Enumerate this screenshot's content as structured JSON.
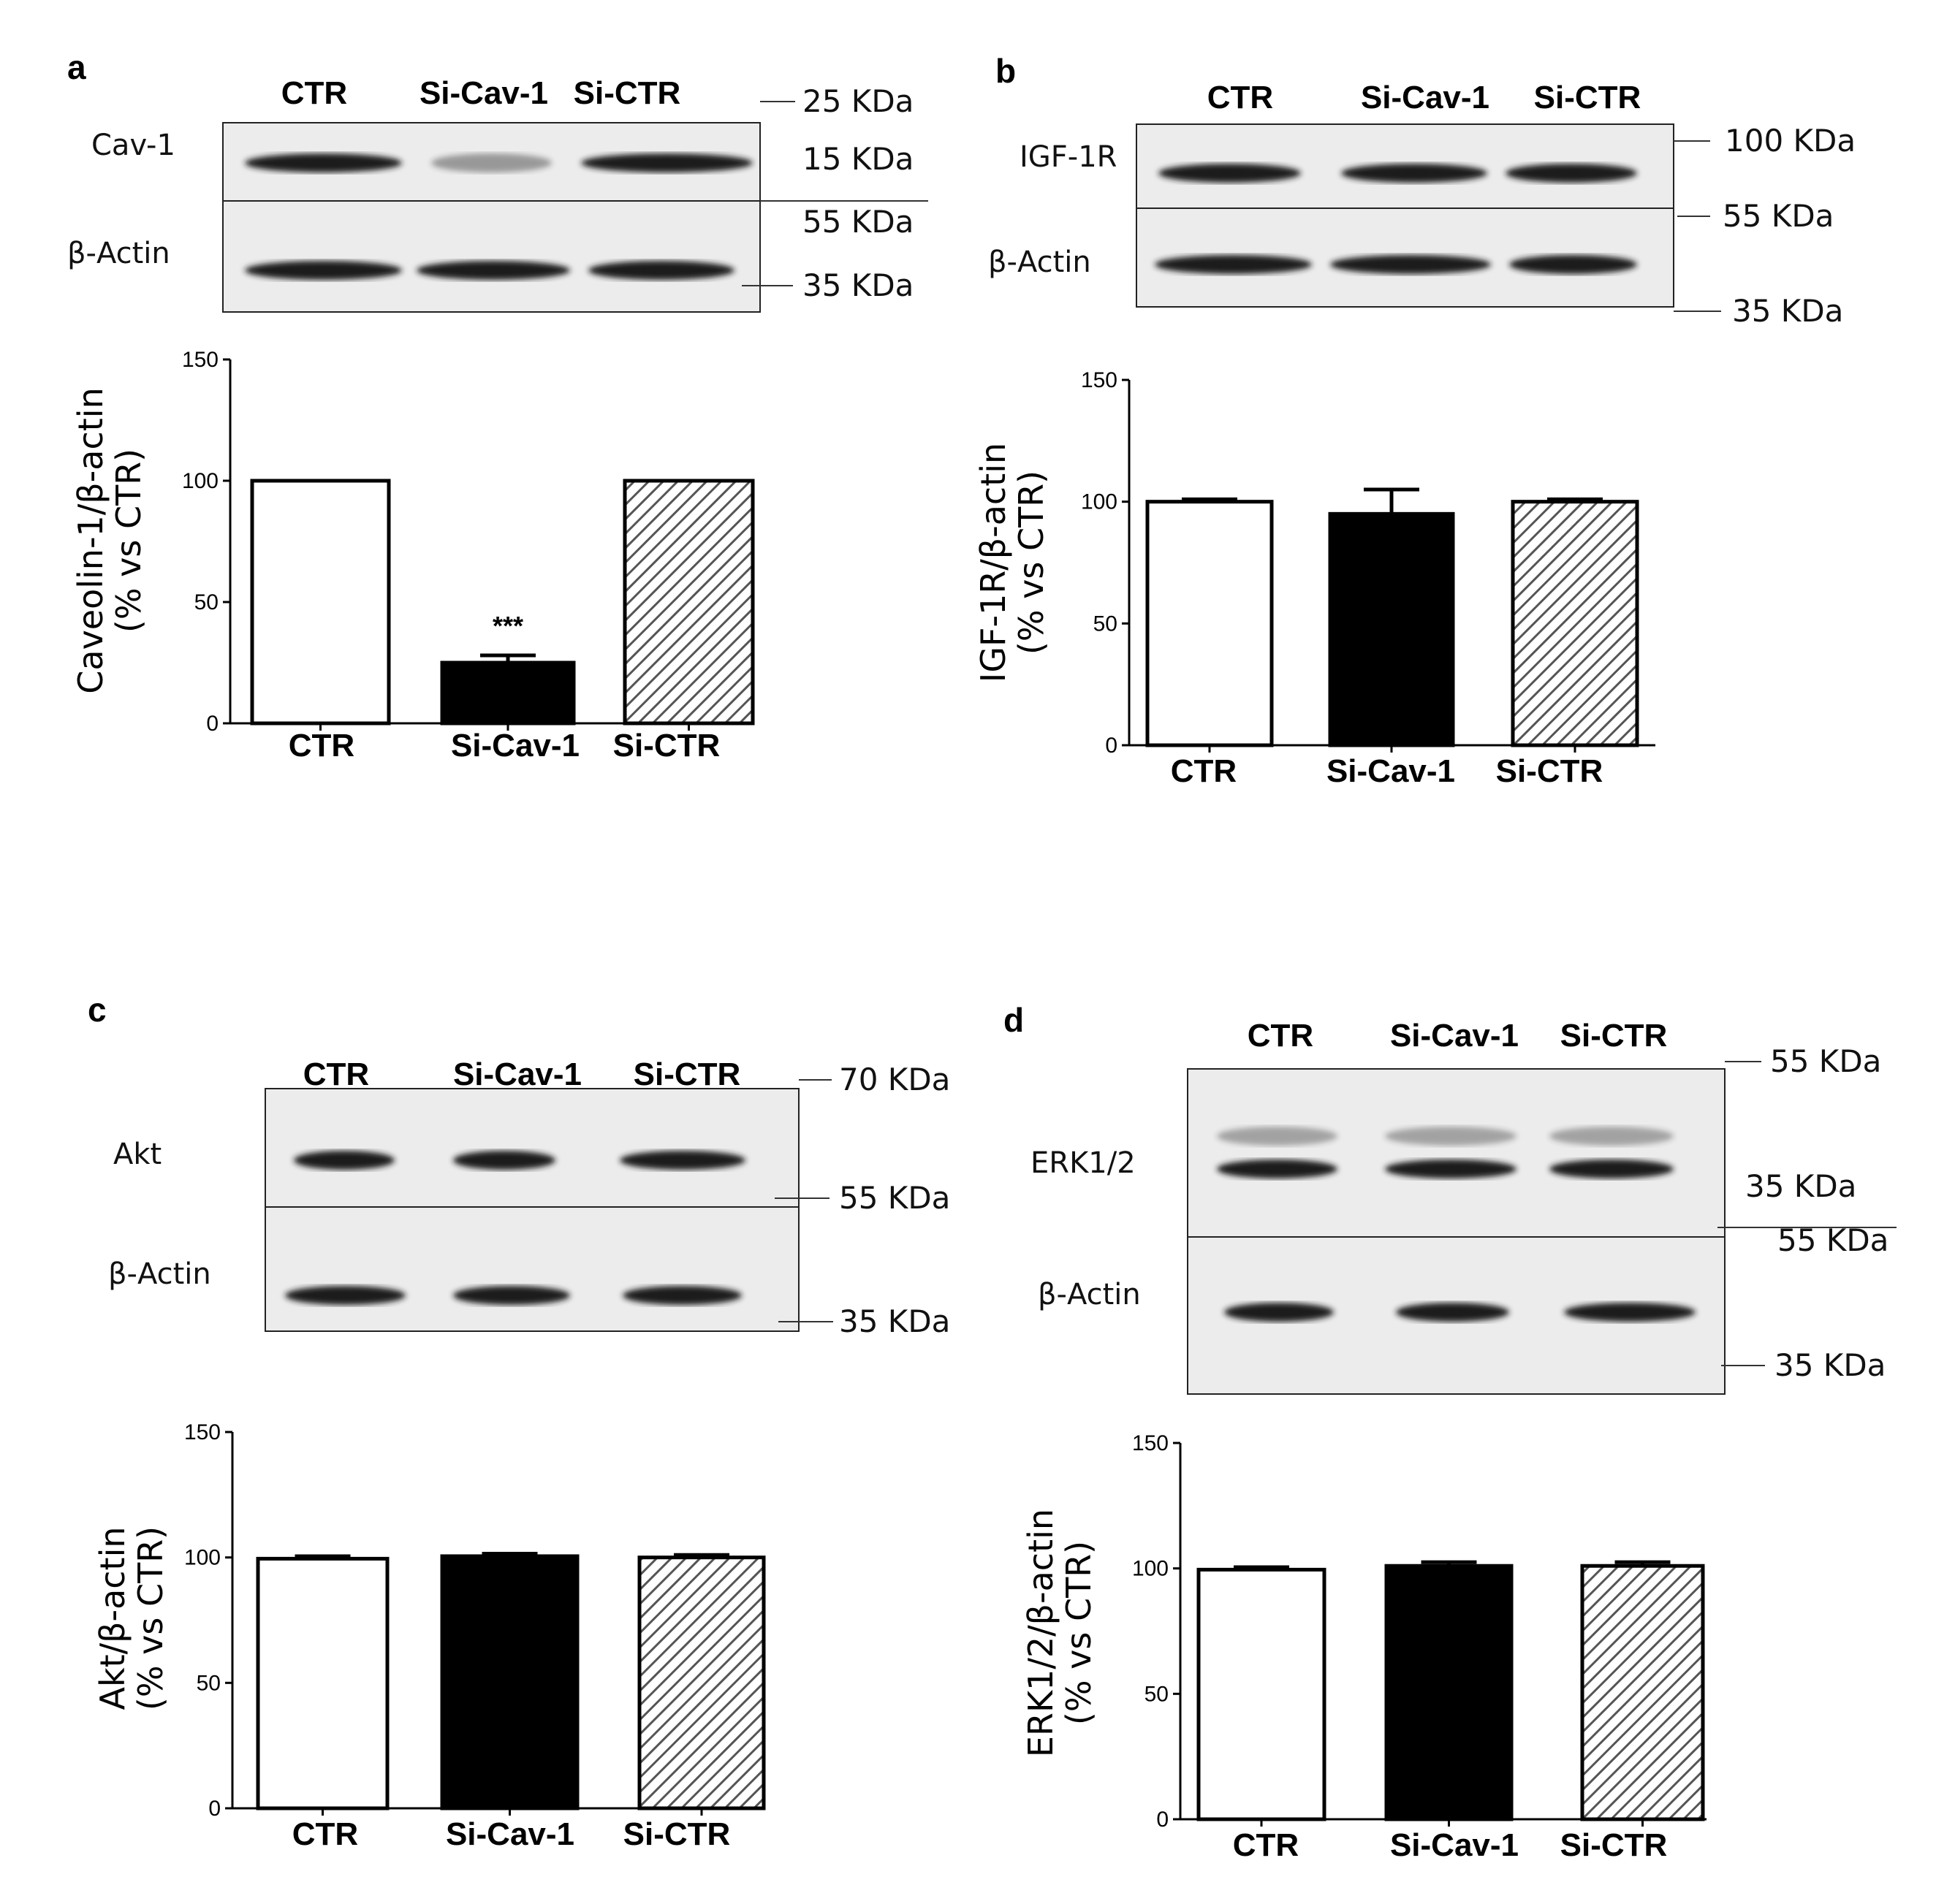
{
  "colors": {
    "bar_ctr": "#ffffff",
    "bar_si_cav1": "#000000",
    "bar_si_ctr_hatch": "#555555",
    "blot_background": "#ececec",
    "band": "#1e1e1e"
  },
  "panels": [
    {
      "letter": "a",
      "lanes": [
        "CTR",
        "Si-Cav-1",
        "Si-CTR"
      ],
      "proteins": [
        "Cav-1",
        "β-Actin"
      ],
      "markers": [
        "25 KDa",
        "15 KDa",
        "55 KDa",
        "35 KDa"
      ],
      "chart_data": {
        "type": "bar",
        "categories": [
          "CTR",
          "Si-Cav-1",
          "Si-CTR"
        ],
        "values": [
          100,
          25,
          100
        ],
        "errors": [
          0,
          3,
          0
        ],
        "ylabel_line1": "Caveolin-1/β-actin",
        "ylabel_line2": "(% vs CTR)",
        "ylim": [
          0,
          150
        ],
        "yticks": [
          "0",
          "50",
          "100",
          "150"
        ],
        "annotations": [
          "",
          "***",
          ""
        ]
      }
    },
    {
      "letter": "b",
      "lanes": [
        "CTR",
        "Si-Cav-1",
        "Si-CTR"
      ],
      "proteins": [
        "IGF-1R",
        "β-Actin"
      ],
      "markers": [
        "100 KDa",
        "55 KDa",
        "35 KDa"
      ],
      "chart_data": {
        "type": "bar",
        "categories": [
          "CTR",
          "Si-Cav-1",
          "Si-CTR"
        ],
        "values": [
          100,
          95,
          100
        ],
        "errors": [
          1,
          10,
          1
        ],
        "ylabel_line1": "IGF-1R/β-actin",
        "ylabel_line2": "(% vs CTR)",
        "ylim": [
          0,
          150
        ],
        "yticks": [
          "0",
          "50",
          "100",
          "150"
        ],
        "annotations": [
          "",
          "",
          ""
        ]
      }
    },
    {
      "letter": "c",
      "lanes": [
        "CTR",
        "Si-Cav-1",
        "Si-CTR"
      ],
      "proteins": [
        "Akt",
        "β-Actin"
      ],
      "markers": [
        "70 KDa",
        "55 KDa",
        "35 KDa"
      ],
      "chart_data": {
        "type": "bar",
        "categories": [
          "CTR",
          "Si-Cav-1",
          "Si-CTR"
        ],
        "values": [
          99.5,
          100.5,
          100
        ],
        "errors": [
          1,
          1,
          1
        ],
        "ylabel_line1": "Akt/β-actin",
        "ylabel_line2": "(% vs CTR)",
        "ylim": [
          0,
          150
        ],
        "yticks": [
          "0",
          "50",
          "100",
          "150"
        ],
        "annotations": [
          "",
          "",
          ""
        ]
      }
    },
    {
      "letter": "d",
      "lanes": [
        "CTR",
        "Si-Cav-1",
        "Si-CTR"
      ],
      "proteins": [
        "ERK1/2",
        "β-Actin"
      ],
      "markers": [
        "55 KDa",
        "35 KDa",
        "55 KDa",
        "35 KDa"
      ],
      "chart_data": {
        "type": "bar",
        "categories": [
          "CTR",
          "Si-Cav-1",
          "Si-CTR"
        ],
        "values": [
          99.5,
          101,
          101
        ],
        "errors": [
          1,
          1.5,
          1.5
        ],
        "ylabel_line1": "ERK1/2/β-actin",
        "ylabel_line2": "(% vs CTR)",
        "ylim": [
          0,
          150
        ],
        "yticks": [
          "0",
          "50",
          "100",
          "150"
        ],
        "annotations": [
          "",
          "",
          ""
        ]
      }
    }
  ]
}
